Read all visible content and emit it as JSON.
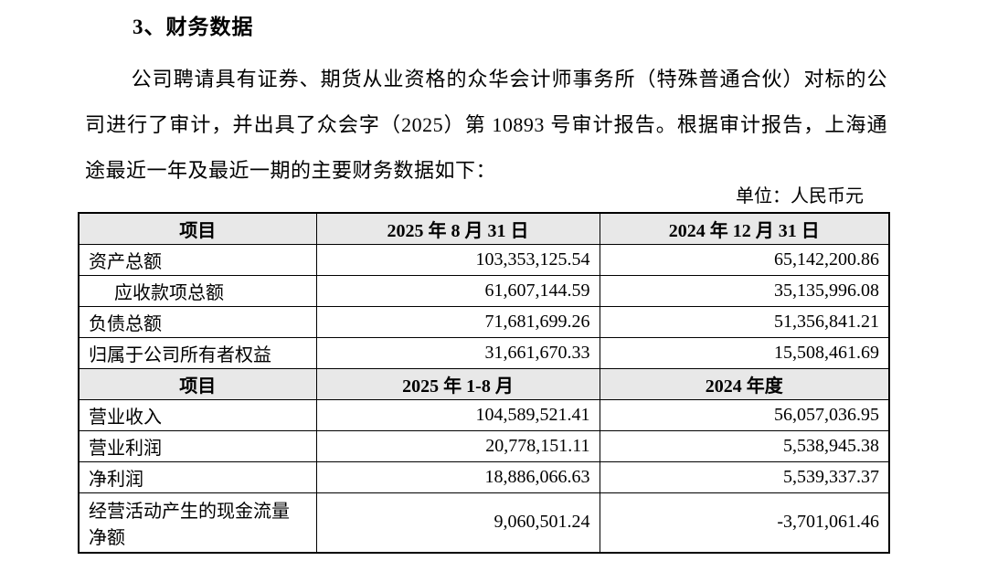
{
  "doc": {
    "title": "3、财务数据",
    "paragraph": "公司聘请具有证券、期货从业资格的众华会计师事务所（特殊普通合伙）对标的公司进行了审计，并出具了众会字（2025）第 10893 号审计报告。根据审计报告，上海通途最近一年及最近一期的主要财务数据如下：",
    "unit_label": "单位：人民币元"
  },
  "colors": {
    "header_bg": "#e8e8e8",
    "border": "#000000",
    "text": "#000000"
  },
  "table": {
    "section1": {
      "header": [
        "项目",
        "2025 年 8 月 31 日",
        "2024 年 12 月 31 日"
      ],
      "rows": [
        {
          "label": "资产总额",
          "v1": "103,353,125.54",
          "v2": "65,142,200.86"
        },
        {
          "label": "应收款项总额",
          "v1": "61,607,144.59",
          "v2": "35,135,996.08"
        },
        {
          "label": "负债总额",
          "v1": "71,681,699.26",
          "v2": "51,356,841.21"
        },
        {
          "label": "归属于公司所有者权益",
          "v1": "31,661,670.33",
          "v2": "15,508,461.69"
        }
      ]
    },
    "section2": {
      "header": [
        "项目",
        "2025 年 1-8 月",
        "2024 年度"
      ],
      "rows": [
        {
          "label": "营业收入",
          "v1": "104,589,521.41",
          "v2": "56,057,036.95"
        },
        {
          "label": "营业利润",
          "v1": "20,778,151.11",
          "v2": "5,538,945.38"
        },
        {
          "label": "净利润",
          "v1": "18,886,066.63",
          "v2": "5,539,337.37"
        },
        {
          "label": "经营活动产生的现金流量净额",
          "v1": "9,060,501.24",
          "v2": "-3,701,061.46"
        }
      ]
    }
  }
}
